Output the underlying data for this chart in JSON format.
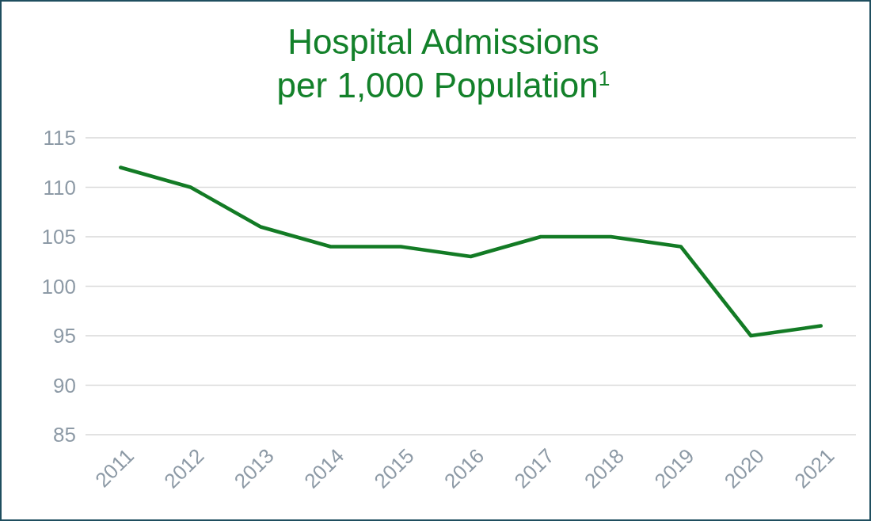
{
  "chart_data": {
    "type": "line",
    "title": "Hospital Admissions\nper 1,000 Population$^{1}$",
    "categories": [
      "2011",
      "2012",
      "2013",
      "2014",
      "2015",
      "2016",
      "2017",
      "2018",
      "2019",
      "2020",
      "2021"
    ],
    "series": [
      {
        "color": "#137b25",
        "values": [
          112,
          110,
          106,
          104,
          104,
          103,
          105,
          105,
          104,
          95,
          96
        ]
      }
    ],
    "ylim": [
      85,
      115
    ],
    "yticks": [
      85,
      90,
      95,
      100,
      105,
      110,
      115
    ],
    "grid": "y",
    "marker": "none",
    "line_style": "solid"
  }
}
